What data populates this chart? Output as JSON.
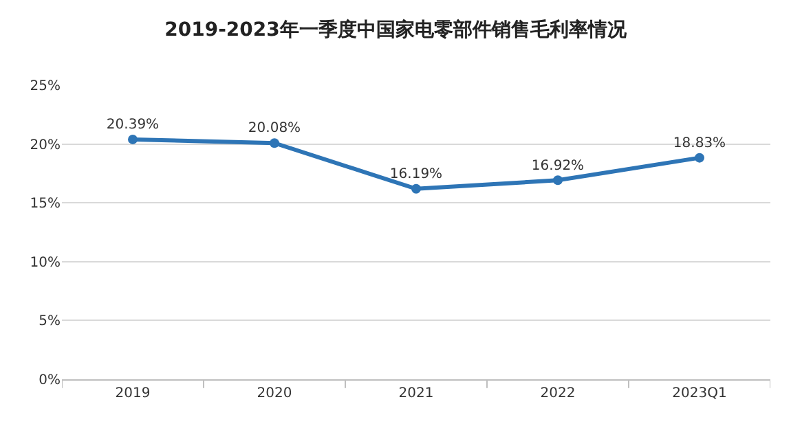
{
  "chart_data": {
    "type": "line",
    "title": "2019-2023年一季度中国家电零部件销售毛利率情况",
    "categories": [
      "2019",
      "2020",
      "2021",
      "2022",
      "2023Q1"
    ],
    "series": [
      {
        "color": "#2e75b6",
        "values": [
          20.39,
          20.08,
          16.19,
          16.92,
          18.83
        ]
      }
    ],
    "value_labels": [
      "20.39%",
      "20.08%",
      "16.19%",
      "16.92%",
      "18.83%"
    ],
    "ylim": [
      0,
      25
    ],
    "yticks": [
      {
        "value": 0,
        "label": "0%"
      },
      {
        "value": 5,
        "label": "5%"
      },
      {
        "value": 10,
        "label": "10%"
      },
      {
        "value": 15,
        "label": "15%"
      },
      {
        "value": 20,
        "label": "20%"
      },
      {
        "value": 25,
        "label": "25%"
      }
    ],
    "grid": "y",
    "marker": "circle",
    "line_style": "solid"
  }
}
